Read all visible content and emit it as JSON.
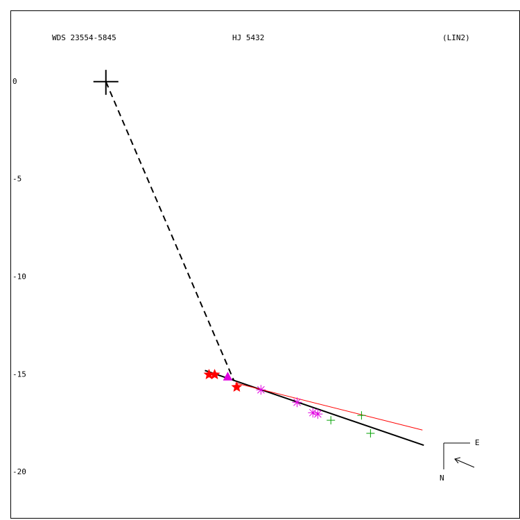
{
  "chart_data": {
    "type": "scatter",
    "labels": [
      "WDS 23554-5845",
      "HJ 5432",
      "(LIN2)"
    ],
    "compass": {
      "east": "E",
      "north": "N"
    },
    "xlim": [
      -4.89,
      21.17
    ],
    "ylim": [
      3.65,
      -22.34
    ],
    "yticks": [
      0,
      -5,
      -10,
      -15,
      -20
    ],
    "series": [
      {
        "marker": "cross",
        "color": "#000000",
        "x": [
          0
        ],
        "y": [
          0
        ]
      },
      {
        "marker": "star",
        "color": "#ff0000",
        "x": [
          5.28,
          5.57,
          6.7
        ],
        "y": [
          -15.0,
          -15.0,
          -15.64
        ]
      },
      {
        "marker": "triangle",
        "color": "#e000e0",
        "x": [
          6.24
        ],
        "y": [
          -15.14
        ]
      },
      {
        "marker": "asterisk",
        "color": "#e000e0",
        "x": [
          7.94,
          9.79,
          10.6,
          10.85
        ],
        "y": [
          -15.78,
          -16.42,
          -16.95,
          -17.02
        ]
      },
      {
        "marker": "plus",
        "color": "#00a000",
        "x": [
          11.52,
          13.09,
          13.55
        ],
        "y": [
          -17.34,
          -17.09,
          -18.01
        ]
      }
    ],
    "lines": [
      {
        "color": "#000000",
        "style": "dashed",
        "x": [
          0,
          6.56
        ],
        "y": [
          0,
          -15.32
        ]
      },
      {
        "color": "#000000",
        "style": "solid",
        "x": [
          5.07,
          16.28
        ],
        "y": [
          -14.79,
          -18.62
        ]
      },
      {
        "color": "#ff0000",
        "style": "solid",
        "x": [
          6.63,
          16.21
        ],
        "y": [
          -15.43,
          -17.84
        ]
      }
    ]
  }
}
